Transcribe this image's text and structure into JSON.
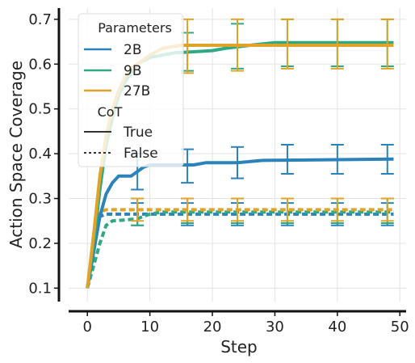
{
  "chart_data": {
    "type": "line",
    "xlabel": "Step",
    "ylabel": "Action Space Coverage",
    "xlim": [
      -3,
      51
    ],
    "ylim": [
      0.07,
      0.725
    ],
    "x_ticks": [
      0,
      10,
      20,
      30,
      40,
      50
    ],
    "y_ticks": [
      0.1,
      0.2,
      0.3,
      0.4,
      0.5,
      0.6,
      0.7
    ],
    "x_tick_labels": [
      "0",
      "10",
      "20",
      "30",
      "40",
      "50"
    ],
    "y_tick_labels": [
      "0.1",
      "0.2",
      "0.3",
      "0.4",
      "0.5",
      "0.6",
      "0.7"
    ],
    "grid": true,
    "legend": {
      "position": "top-left",
      "title1": "Parameters",
      "items": [
        {
          "label": "2B",
          "color": "#2b83ba"
        },
        {
          "label": "9B",
          "color": "#2fa884"
        },
        {
          "label": "27B",
          "color": "#e0a32a"
        }
      ],
      "title2": "CoT",
      "styles": [
        {
          "label": "True",
          "dash": "solid"
        },
        {
          "label": "False",
          "dash": "dotted"
        }
      ]
    },
    "series": [
      {
        "name": "2B",
        "cot": "True",
        "color": "#2b83ba",
        "points": [
          [
            0,
            0.1
          ],
          [
            1,
            0.18
          ],
          [
            2,
            0.26
          ],
          [
            3,
            0.31
          ],
          [
            4,
            0.335
          ],
          [
            5,
            0.35
          ],
          [
            6,
            0.35
          ],
          [
            7,
            0.35
          ],
          [
            8,
            0.36
          ],
          [
            9,
            0.37
          ],
          [
            10,
            0.375
          ],
          [
            14,
            0.375
          ],
          [
            17,
            0.375
          ],
          [
            19,
            0.38
          ],
          [
            24,
            0.38
          ],
          [
            28,
            0.385
          ],
          [
            49,
            0.388
          ]
        ],
        "error_bars": [
          {
            "x": 8,
            "y": 0.36,
            "lo": 0.32,
            "hi": 0.4
          },
          {
            "x": 16,
            "y": 0.375,
            "lo": 0.335,
            "hi": 0.41
          },
          {
            "x": 24,
            "y": 0.38,
            "lo": 0.345,
            "hi": 0.415
          },
          {
            "x": 32,
            "y": 0.388,
            "lo": 0.355,
            "hi": 0.42
          },
          {
            "x": 40,
            "y": 0.388,
            "lo": 0.355,
            "hi": 0.42
          },
          {
            "x": 48,
            "y": 0.388,
            "lo": 0.355,
            "hi": 0.42
          }
        ]
      },
      {
        "name": "9B",
        "cot": "True",
        "color": "#2fa884",
        "points": [
          [
            0,
            0.1
          ],
          [
            1,
            0.2
          ],
          [
            2,
            0.32
          ],
          [
            3,
            0.42
          ],
          [
            4,
            0.48
          ],
          [
            5,
            0.53
          ],
          [
            6,
            0.56
          ],
          [
            7,
            0.58
          ],
          [
            8,
            0.6
          ],
          [
            10,
            0.615
          ],
          [
            14,
            0.625
          ],
          [
            20,
            0.63
          ],
          [
            22,
            0.635
          ],
          [
            26,
            0.642
          ],
          [
            30,
            0.648
          ],
          [
            49,
            0.648
          ]
        ],
        "error_bars": [
          {
            "x": 16,
            "y": 0.625,
            "lo": 0.585,
            "hi": 0.67
          },
          {
            "x": 24,
            "y": 0.64,
            "lo": 0.59,
            "hi": 0.69
          },
          {
            "x": 32,
            "y": 0.648,
            "lo": 0.595,
            "hi": 0.7
          },
          {
            "x": 40,
            "y": 0.648,
            "lo": 0.595,
            "hi": 0.7
          },
          {
            "x": 48,
            "y": 0.648,
            "lo": 0.595,
            "hi": 0.7
          }
        ]
      },
      {
        "name": "27B",
        "cot": "True",
        "color": "#e0a32a",
        "points": [
          [
            0,
            0.1
          ],
          [
            1,
            0.22
          ],
          [
            2,
            0.35
          ],
          [
            3,
            0.44
          ],
          [
            4,
            0.5
          ],
          [
            5,
            0.54
          ],
          [
            6,
            0.57
          ],
          [
            7,
            0.59
          ],
          [
            8,
            0.6
          ],
          [
            10,
            0.62
          ],
          [
            12,
            0.635
          ],
          [
            15,
            0.642
          ],
          [
            49,
            0.642
          ]
        ],
        "error_bars": [
          {
            "x": 16,
            "y": 0.642,
            "lo": 0.58,
            "hi": 0.7
          },
          {
            "x": 24,
            "y": 0.642,
            "lo": 0.585,
            "hi": 0.7
          },
          {
            "x": 32,
            "y": 0.642,
            "lo": 0.59,
            "hi": 0.7
          },
          {
            "x": 40,
            "y": 0.642,
            "lo": 0.59,
            "hi": 0.7
          },
          {
            "x": 48,
            "y": 0.642,
            "lo": 0.59,
            "hi": 0.7
          }
        ]
      },
      {
        "name": "2B",
        "cot": "False",
        "color": "#2b83ba",
        "points": [
          [
            0,
            0.1
          ],
          [
            1,
            0.2
          ],
          [
            2,
            0.26
          ],
          [
            3,
            0.265
          ],
          [
            5,
            0.265
          ],
          [
            10,
            0.265
          ],
          [
            49,
            0.265
          ]
        ],
        "error_bars": [
          {
            "x": 8,
            "y": 0.265,
            "lo": 0.24,
            "hi": 0.29
          },
          {
            "x": 16,
            "y": 0.265,
            "lo": 0.24,
            "hi": 0.29
          },
          {
            "x": 24,
            "y": 0.265,
            "lo": 0.24,
            "hi": 0.29
          },
          {
            "x": 32,
            "y": 0.265,
            "lo": 0.24,
            "hi": 0.29
          },
          {
            "x": 40,
            "y": 0.265,
            "lo": 0.24,
            "hi": 0.29
          },
          {
            "x": 48,
            "y": 0.265,
            "lo": 0.24,
            "hi": 0.29
          }
        ]
      },
      {
        "name": "9B",
        "cot": "False",
        "color": "#2fa884",
        "points": [
          [
            0,
            0.1
          ],
          [
            1,
            0.15
          ],
          [
            2,
            0.2
          ],
          [
            3,
            0.24
          ],
          [
            4,
            0.25
          ],
          [
            6,
            0.252
          ],
          [
            8,
            0.255
          ],
          [
            10,
            0.265
          ],
          [
            12,
            0.27
          ],
          [
            49,
            0.27
          ]
        ],
        "error_bars": [
          {
            "x": 8,
            "y": 0.255,
            "lo": 0.24,
            "hi": 0.3
          },
          {
            "x": 16,
            "y": 0.27,
            "lo": 0.245,
            "hi": 0.3
          },
          {
            "x": 24,
            "y": 0.27,
            "lo": 0.245,
            "hi": 0.3
          },
          {
            "x": 32,
            "y": 0.27,
            "lo": 0.245,
            "hi": 0.3
          },
          {
            "x": 40,
            "y": 0.27,
            "lo": 0.245,
            "hi": 0.3
          },
          {
            "x": 48,
            "y": 0.27,
            "lo": 0.245,
            "hi": 0.3
          }
        ]
      },
      {
        "name": "27B",
        "cot": "False",
        "color": "#e0a32a",
        "points": [
          [
            0,
            0.1
          ],
          [
            1,
            0.2
          ],
          [
            2,
            0.27
          ],
          [
            3,
            0.275
          ],
          [
            49,
            0.275
          ]
        ],
        "error_bars": [
          {
            "x": 8,
            "y": 0.275,
            "lo": 0.25,
            "hi": 0.3
          },
          {
            "x": 16,
            "y": 0.275,
            "lo": 0.25,
            "hi": 0.3
          },
          {
            "x": 24,
            "y": 0.275,
            "lo": 0.25,
            "hi": 0.3
          },
          {
            "x": 32,
            "y": 0.275,
            "lo": 0.25,
            "hi": 0.3
          },
          {
            "x": 40,
            "y": 0.275,
            "lo": 0.25,
            "hi": 0.3
          },
          {
            "x": 48,
            "y": 0.275,
            "lo": 0.25,
            "hi": 0.3
          }
        ]
      }
    ]
  }
}
